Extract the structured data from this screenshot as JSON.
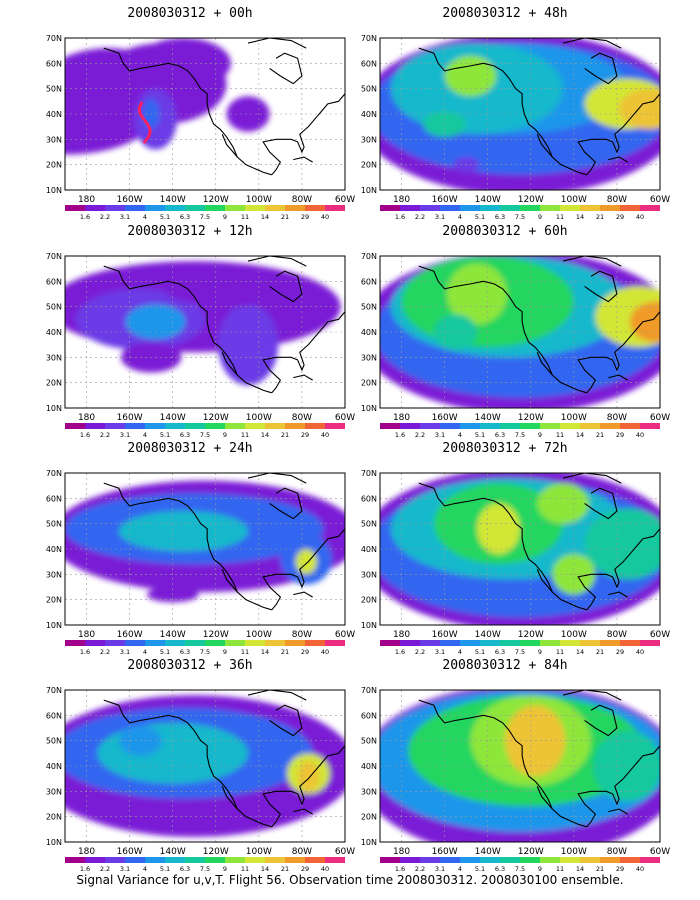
{
  "panels": [
    {
      "title": "2008030312 + 00h",
      "lead_hours": 0
    },
    {
      "title": "2008030312 + 48h",
      "lead_hours": 48
    },
    {
      "title": "2008030312 + 12h",
      "lead_hours": 12
    },
    {
      "title": "2008030312 + 60h",
      "lead_hours": 60
    },
    {
      "title": "2008030312 + 24h",
      "lead_hours": 24
    },
    {
      "title": "2008030312 + 72h",
      "lead_hours": 72
    },
    {
      "title": "2008030312 + 36h",
      "lead_hours": 36
    },
    {
      "title": "2008030312 + 84h",
      "lead_hours": 84
    }
  ],
  "lat_labels": [
    "10N",
    "20N",
    "30N",
    "40N",
    "50N",
    "60N",
    "70N"
  ],
  "lon_labels": [
    "180",
    "160W",
    "140W",
    "120W",
    "100W",
    "80W",
    "60W"
  ],
  "colorbar": {
    "labels": [
      "1.6",
      "2.2",
      "3.1",
      "4",
      "5.1",
      "6.3",
      "7.5",
      "9",
      "11",
      "14",
      "21",
      "29",
      "40"
    ],
    "colors": [
      "#a0008c",
      "#7a1ad6",
      "#6a3be6",
      "#3366f0",
      "#1e96ea",
      "#18b8cc",
      "#16c89e",
      "#22d65e",
      "#8ee63a",
      "#d2e636",
      "#ecc436",
      "#f09a2a",
      "#f06436",
      "#ec2c80"
    ]
  },
  "footer": "Signal Variance for u,v,T. Flight 56. Observation time 2008030312. 2008030100 ensemble."
}
